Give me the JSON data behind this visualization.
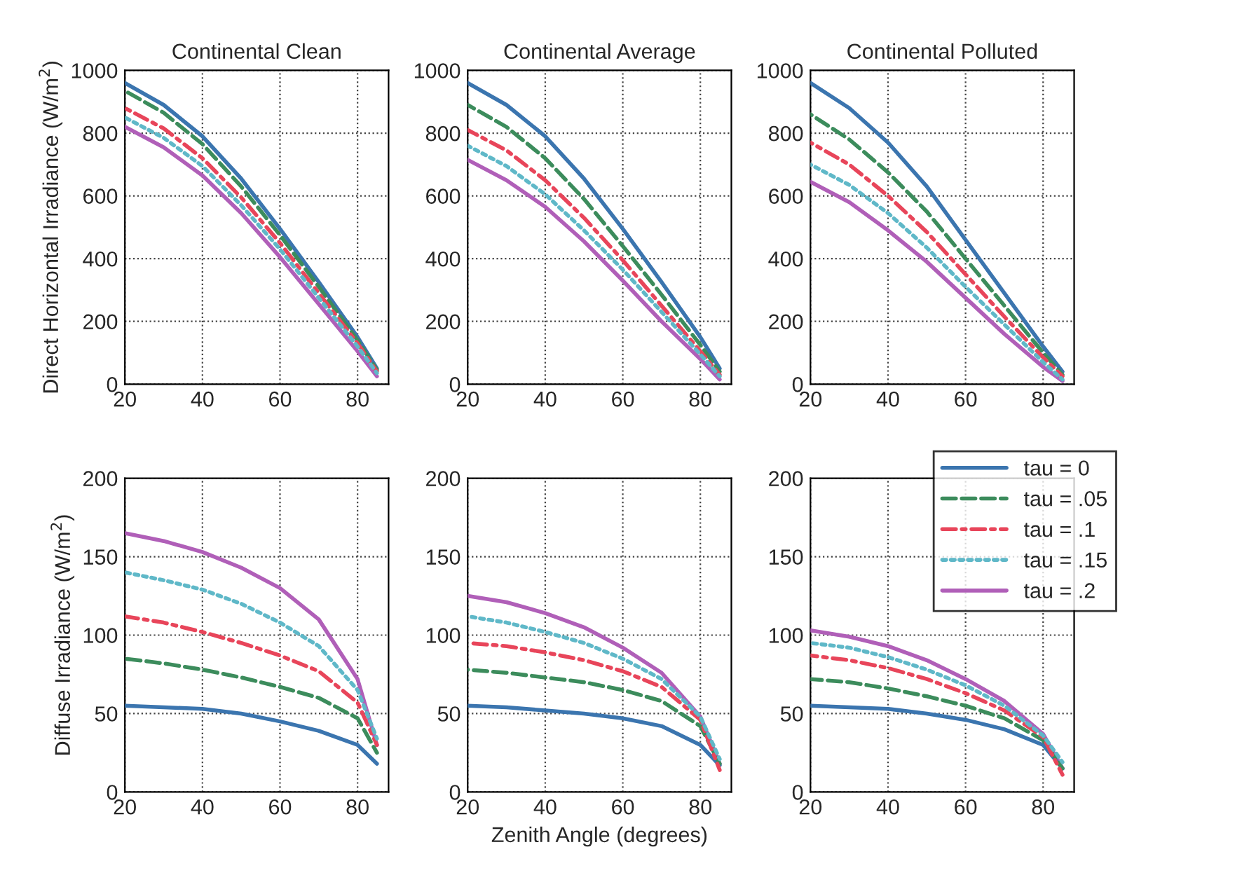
{
  "chart_data": [
    {
      "type": "line",
      "title": "Continental Clean",
      "ylabel": "Direct Horizontal Irradiance (W/m$^{2}$)",
      "xlim": [
        20,
        88
      ],
      "xticks": [
        20,
        40,
        60,
        80
      ],
      "ylim": [
        0,
        1000
      ],
      "yticks": [
        0,
        200,
        400,
        600,
        800,
        1000
      ],
      "grid": true,
      "x": [
        20,
        30,
        40,
        50,
        60,
        70,
        80,
        85
      ],
      "series": [
        {
          "color": "#3b75af",
          "line_style": "solid",
          "values": [
            960,
            890,
            790,
            655,
            495,
            325,
            150,
            50
          ]
        },
        {
          "color": "#3c8c5c",
          "line_style": "dashed",
          "values": [
            935,
            865,
            765,
            630,
            475,
            310,
            140,
            45
          ]
        },
        {
          "color": "#e8455a",
          "line_style": "dashdot",
          "values": [
            880,
            815,
            720,
            595,
            450,
            290,
            130,
            40
          ]
        },
        {
          "color": "#5fb8c8",
          "line_style": "dotted",
          "values": [
            850,
            785,
            695,
            570,
            430,
            275,
            120,
            35
          ]
        },
        {
          "color": "#b05fb8",
          "line_style": "solid",
          "values": [
            820,
            755,
            665,
            545,
            405,
            255,
            105,
            25
          ]
        }
      ]
    },
    {
      "type": "line",
      "title": "Continental Average",
      "xlim": [
        20,
        88
      ],
      "xticks": [
        20,
        40,
        60,
        80
      ],
      "ylim": [
        0,
        1000
      ],
      "yticks": [
        0,
        200,
        400,
        600,
        800,
        1000
      ],
      "grid": true,
      "x": [
        20,
        30,
        40,
        50,
        60,
        70,
        80,
        85
      ],
      "series": [
        {
          "color": "#3b75af",
          "line_style": "solid",
          "values": [
            960,
            890,
            790,
            655,
            495,
            325,
            150,
            50
          ]
        },
        {
          "color": "#3c8c5c",
          "line_style": "dashed",
          "values": [
            890,
            820,
            720,
            590,
            440,
            285,
            125,
            40
          ]
        },
        {
          "color": "#e8455a",
          "line_style": "dashdot",
          "values": [
            810,
            745,
            650,
            530,
            395,
            250,
            105,
            30
          ]
        },
        {
          "color": "#5fb8c8",
          "line_style": "dotted",
          "values": [
            760,
            695,
            605,
            490,
            365,
            230,
            95,
            25
          ]
        },
        {
          "color": "#b05fb8",
          "line_style": "solid",
          "values": [
            715,
            650,
            565,
            455,
            330,
            200,
            80,
            15
          ]
        }
      ]
    },
    {
      "type": "line",
      "title": "Continental Polluted",
      "xlim": [
        20,
        88
      ],
      "xticks": [
        20,
        40,
        60,
        80
      ],
      "ylim": [
        0,
        1000
      ],
      "yticks": [
        0,
        200,
        400,
        600,
        800,
        1000
      ],
      "grid": true,
      "x": [
        20,
        30,
        40,
        50,
        60,
        70,
        80,
        85
      ],
      "series": [
        {
          "color": "#3b75af",
          "line_style": "solid",
          "values": [
            960,
            880,
            770,
            630,
            460,
            290,
            120,
            40
          ]
        },
        {
          "color": "#3c8c5c",
          "line_style": "dashed",
          "values": [
            860,
            780,
            675,
            550,
            400,
            250,
            100,
            30
          ]
        },
        {
          "color": "#e8455a",
          "line_style": "dashdot",
          "values": [
            770,
            700,
            600,
            485,
            350,
            215,
            85,
            25
          ]
        },
        {
          "color": "#5fb8c8",
          "line_style": "dotted",
          "values": [
            700,
            635,
            545,
            435,
            310,
            190,
            70,
            15
          ]
        },
        {
          "color": "#b05fb8",
          "line_style": "solid",
          "values": [
            645,
            580,
            490,
            390,
            275,
            160,
            55,
            10
          ]
        }
      ]
    },
    {
      "type": "line",
      "ylabel": "Diffuse Irradiance (W/m$^{2}$)",
      "xlim": [
        20,
        88
      ],
      "xticks": [
        20,
        40,
        60,
        80
      ],
      "ylim": [
        0,
        200
      ],
      "yticks": [
        0,
        50,
        100,
        150,
        200
      ],
      "grid": true,
      "x": [
        20,
        30,
        40,
        50,
        60,
        70,
        80,
        85
      ],
      "series": [
        {
          "color": "#3b75af",
          "line_style": "solid",
          "values": [
            55,
            54,
            53,
            50,
            45,
            39,
            30,
            18
          ]
        },
        {
          "color": "#3c8c5c",
          "line_style": "dashed",
          "values": [
            85,
            82,
            78,
            73,
            67,
            60,
            47,
            25
          ]
        },
        {
          "color": "#e8455a",
          "line_style": "dashdot",
          "values": [
            112,
            108,
            102,
            95,
            87,
            77,
            57,
            30
          ]
        },
        {
          "color": "#5fb8c8",
          "line_style": "dotted",
          "values": [
            140,
            135,
            129,
            120,
            108,
            93,
            65,
            34
          ]
        },
        {
          "color": "#b05fb8",
          "line_style": "solid",
          "values": [
            165,
            160,
            153,
            143,
            130,
            110,
            72,
            30
          ]
        }
      ]
    },
    {
      "type": "line",
      "xlabel": "Zenith Angle (degrees)",
      "xlim": [
        20,
        88
      ],
      "xticks": [
        20,
        40,
        60,
        80
      ],
      "ylim": [
        0,
        200
      ],
      "yticks": [
        0,
        50,
        100,
        150,
        200
      ],
      "grid": true,
      "x": [
        20,
        30,
        40,
        50,
        60,
        70,
        80,
        85
      ],
      "series": [
        {
          "color": "#3b75af",
          "line_style": "solid",
          "values": [
            55,
            54,
            52,
            50,
            47,
            42,
            30,
            17
          ]
        },
        {
          "color": "#3c8c5c",
          "line_style": "dashed",
          "values": [
            78,
            76,
            73,
            70,
            65,
            58,
            42,
            18
          ]
        },
        {
          "color": "#e8455a",
          "line_style": "dashdot",
          "values": [
            95,
            93,
            89,
            84,
            77,
            67,
            46,
            14
          ]
        },
        {
          "color": "#5fb8c8",
          "line_style": "dotted",
          "values": [
            112,
            108,
            102,
            95,
            85,
            72,
            48,
            21
          ]
        },
        {
          "color": "#b05fb8",
          "line_style": "solid",
          "values": [
            125,
            121,
            114,
            105,
            92,
            76,
            48,
            18
          ]
        }
      ]
    },
    {
      "type": "line",
      "xlim": [
        20,
        88
      ],
      "xticks": [
        20,
        40,
        60,
        80
      ],
      "ylim": [
        0,
        200
      ],
      "yticks": [
        0,
        50,
        100,
        150,
        200
      ],
      "grid": true,
      "legend": "top right",
      "x": [
        20,
        30,
        40,
        50,
        60,
        70,
        80,
        85
      ],
      "series": [
        {
          "name": "tau = 0",
          "color": "#3b75af",
          "line_style": "solid",
          "values": [
            55,
            54,
            53,
            50,
            46,
            40,
            30,
            15
          ]
        },
        {
          "name": "tau = .05",
          "color": "#3c8c5c",
          "line_style": "dashed",
          "values": [
            72,
            70,
            66,
            61,
            55,
            47,
            33,
            15
          ]
        },
        {
          "name": "tau = .1",
          "color": "#e8455a",
          "line_style": "dashdot",
          "values": [
            87,
            84,
            79,
            72,
            63,
            52,
            35,
            11
          ]
        },
        {
          "name": "tau = .15",
          "color": "#5fb8c8",
          "line_style": "dotted",
          "values": [
            95,
            92,
            86,
            78,
            68,
            55,
            36,
            19
          ]
        },
        {
          "name": "tau = .2",
          "color": "#b05fb8",
          "line_style": "solid",
          "values": [
            103,
            99,
            93,
            84,
            72,
            58,
            37,
            15
          ]
        }
      ]
    }
  ]
}
